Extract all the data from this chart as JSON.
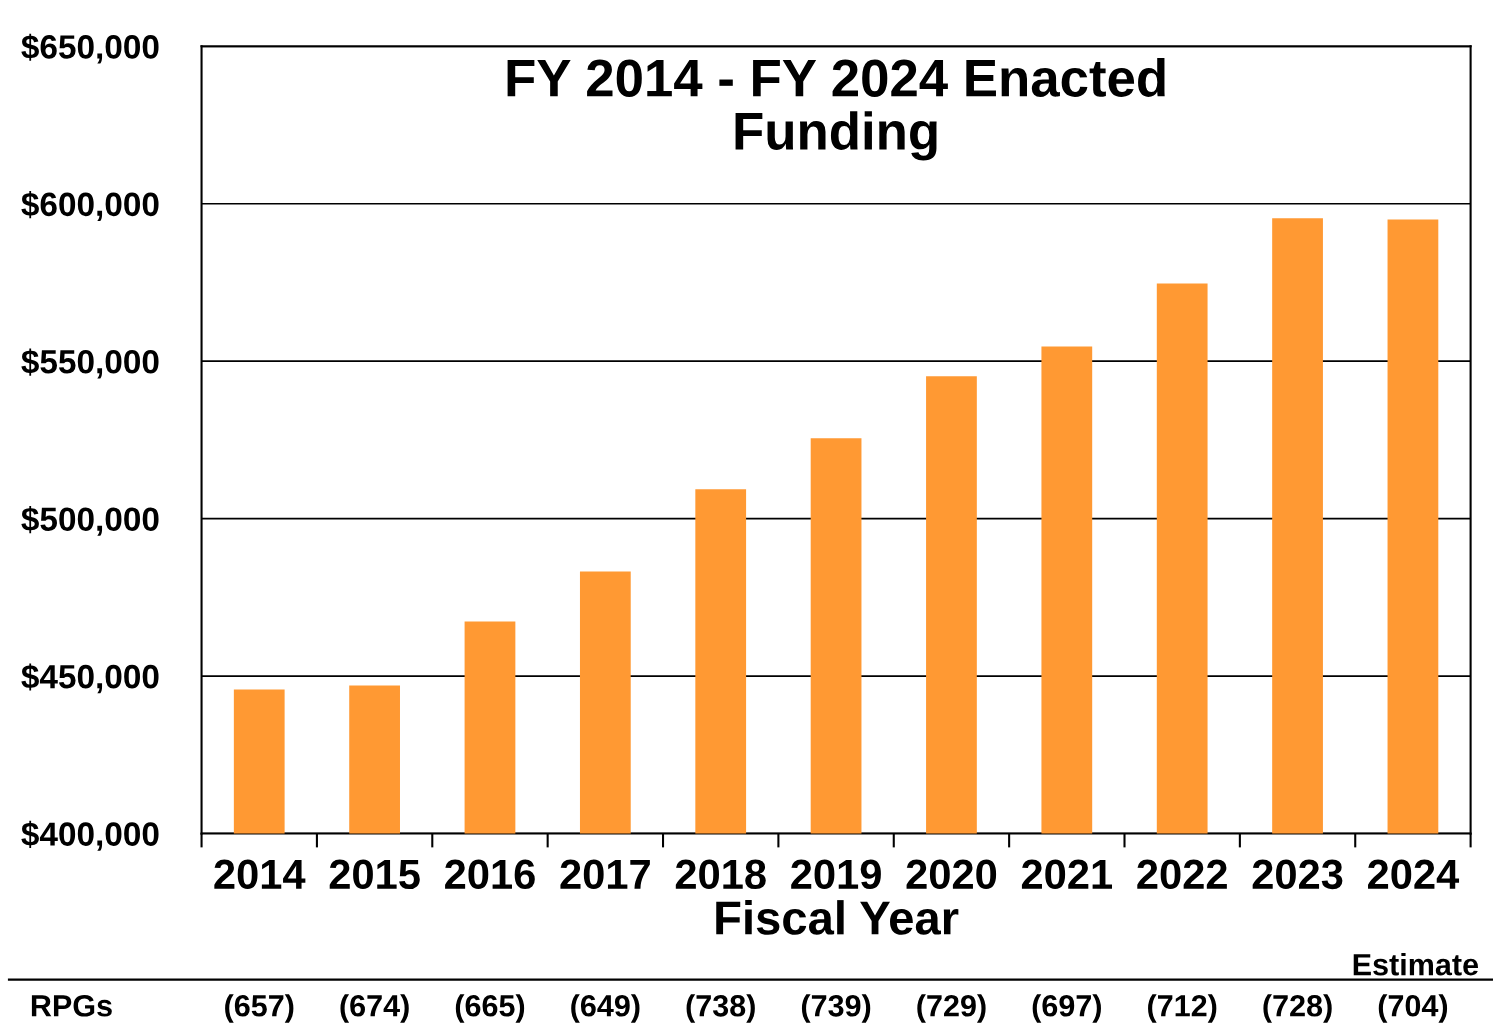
{
  "chart_data": {
    "type": "bar",
    "title": "FY 2014 - FY 2024 Enacted\nFunding",
    "xlabel": "Fiscal Year",
    "categories": [
      "2014",
      "2015",
      "2016",
      "2017",
      "2018",
      "2019",
      "2020",
      "2021",
      "2022",
      "2023",
      "2024"
    ],
    "values": [
      445700,
      447000,
      467300,
      483200,
      509300,
      525500,
      545200,
      554700,
      574700,
      595400,
      595000
    ],
    "color": "#ff9933",
    "ylim": [
      400000,
      650000
    ],
    "yticks": [
      {
        "value": 400000,
        "label": "$400,000"
      },
      {
        "value": 450000,
        "label": "$450,000"
      },
      {
        "value": 500000,
        "label": "$500,000"
      },
      {
        "value": 550000,
        "label": "$550,000"
      },
      {
        "value": 600000,
        "label": "$600,000"
      },
      {
        "value": 650000,
        "label": "$650,000"
      }
    ],
    "grid": "y",
    "legend": false,
    "annotations": [
      "Estimate",
      "RPGs",
      "(657)",
      "(674)",
      "(665)",
      "(649)",
      "(738)",
      "(739)",
      "(729)",
      "(697)",
      "(712)",
      "(728)",
      "(704)"
    ]
  }
}
